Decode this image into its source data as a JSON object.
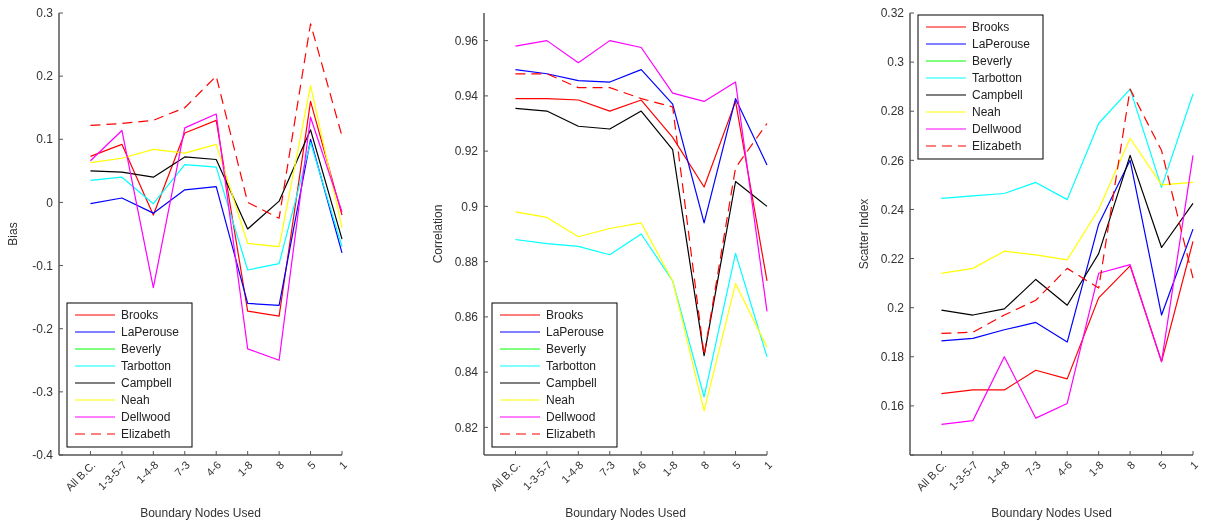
{
  "chart_data": [
    {
      "type": "line",
      "ylabel": "Bias",
      "xlabel": "Boundary Nodes Used",
      "categories": [
        "All B.C.",
        "1-3-5-7",
        "1-4-8",
        "7-3",
        "4-6",
        "1-8",
        "8",
        "5",
        "1"
      ],
      "ylim": [
        -0.4,
        0.3
      ],
      "yticks": [
        -0.4,
        -0.3,
        -0.2,
        -0.1,
        0,
        0.1,
        0.2,
        0.3
      ],
      "grid": false,
      "legend": "bottom left",
      "marker": "none",
      "series": [
        {
          "name": "Brooks",
          "color": "#ff0000",
          "line_style": "solid",
          "values": [
            0.073,
            0.092,
            -0.02,
            0.11,
            0.13,
            -0.172,
            -0.18,
            0.16,
            -0.02
          ]
        },
        {
          "name": "LaPerouse",
          "color": "#0000ff",
          "line_style": "solid",
          "values": [
            -0.002,
            0.007,
            -0.017,
            0.02,
            0.025,
            -0.16,
            -0.163,
            0.1,
            -0.08
          ]
        },
        {
          "name": "Beverly",
          "color": "#00ff00",
          "line_style": "solid",
          "values": [
            null,
            null,
            null,
            null,
            null,
            null,
            null,
            null,
            null
          ]
        },
        {
          "name": "Tarbotton",
          "color": "#00ffff",
          "line_style": "solid",
          "values": [
            0.035,
            0.04,
            -0.002,
            0.06,
            0.056,
            -0.107,
            -0.097,
            0.095,
            -0.07
          ]
        },
        {
          "name": "Campbell",
          "color": "#000000",
          "line_style": "solid",
          "values": [
            0.05,
            0.048,
            0.04,
            0.072,
            0.068,
            -0.042,
            0.002,
            0.115,
            -0.058
          ]
        },
        {
          "name": "Neah",
          "color": "#ffff00",
          "line_style": "solid",
          "values": [
            0.063,
            0.07,
            0.084,
            0.078,
            0.092,
            -0.065,
            -0.07,
            0.185,
            -0.04
          ]
        },
        {
          "name": "Dellwood",
          "color": "#ff00ff",
          "line_style": "solid",
          "values": [
            0.066,
            0.114,
            -0.135,
            0.118,
            0.14,
            -0.232,
            -0.25,
            0.135,
            -0.015
          ]
        },
        {
          "name": "Elizabeth",
          "color": "#ff0000",
          "line_style": "dashed",
          "values": [
            0.122,
            0.125,
            0.13,
            0.15,
            0.2,
            0,
            -0.025,
            0.283,
            0.105
          ]
        }
      ]
    },
    {
      "type": "line",
      "ylabel": "Correlation",
      "xlabel": "Boundary Nodes Used",
      "categories": [
        "All B.C.",
        "1-3-5-7",
        "1-4-8",
        "7-3",
        "4-6",
        "1-8",
        "8",
        "5",
        "1"
      ],
      "ylim": [
        0.81,
        0.97
      ],
      "yticks": [
        0.82,
        0.84,
        0.86,
        0.88,
        0.9,
        0.92,
        0.94,
        0.96
      ],
      "grid": false,
      "legend": "bottom left",
      "marker": "none",
      "series": [
        {
          "name": "Brooks",
          "color": "#ff0000",
          "line_style": "solid",
          "values": [
            0.939,
            0.939,
            0.9385,
            0.9345,
            0.9385,
            0.925,
            0.907,
            0.938,
            0.873
          ]
        },
        {
          "name": "LaPerouse",
          "color": "#0000ff",
          "line_style": "solid",
          "values": [
            0.9495,
            0.948,
            0.9455,
            0.945,
            0.9495,
            0.937,
            0.894,
            0.939,
            0.915
          ]
        },
        {
          "name": "Beverly",
          "color": "#00ff00",
          "line_style": "solid",
          "values": [
            null,
            null,
            null,
            null,
            null,
            null,
            null,
            null,
            null
          ]
        },
        {
          "name": "Tarbotton",
          "color": "#00ffff",
          "line_style": "solid",
          "values": [
            0.888,
            0.8865,
            0.8855,
            0.8825,
            0.89,
            0.873,
            0.831,
            0.883,
            0.8455
          ]
        },
        {
          "name": "Campbell",
          "color": "#000000",
          "line_style": "solid",
          "values": [
            0.9355,
            0.9345,
            0.929,
            0.928,
            0.9345,
            0.9205,
            0.846,
            0.909,
            0.9
          ]
        },
        {
          "name": "Neah",
          "color": "#ffff00",
          "line_style": "solid",
          "values": [
            0.898,
            0.896,
            0.889,
            0.892,
            0.894,
            0.873,
            0.826,
            0.872,
            0.849
          ]
        },
        {
          "name": "Dellwood",
          "color": "#ff00ff",
          "line_style": "solid",
          "values": [
            0.958,
            0.96,
            0.952,
            0.96,
            0.9575,
            0.941,
            0.938,
            0.945,
            0.862
          ]
        },
        {
          "name": "Elizabeth",
          "color": "#ff0000",
          "line_style": "dashed",
          "values": [
            0.948,
            0.948,
            0.943,
            0.943,
            0.939,
            0.936,
            0.846,
            0.914,
            0.93
          ]
        }
      ]
    },
    {
      "type": "line",
      "ylabel": "Scatter Index",
      "xlabel": "Boundary Nodes Used",
      "categories": [
        "All B.C.",
        "1-3-5-7",
        "1-4-8",
        "7-3",
        "4-6",
        "1-8",
        "8",
        "5",
        "1"
      ],
      "ylim": [
        0.14,
        0.32
      ],
      "yticks": [
        {
          "value": 0.14,
          "label": null
        },
        0.16,
        0.18,
        0.2,
        0.22,
        0.24,
        0.26,
        0.28,
        0.3,
        0.32
      ],
      "grid": false,
      "legend": "top left",
      "marker": "none",
      "series": [
        {
          "name": "Brooks",
          "color": "#ff0000",
          "line_style": "solid",
          "values": [
            0.165,
            0.1665,
            0.1665,
            0.1745,
            0.171,
            0.204,
            0.217,
            0.178,
            0.227
          ]
        },
        {
          "name": "LaPerouse",
          "color": "#0000ff",
          "line_style": "solid",
          "values": [
            0.1865,
            0.1875,
            0.191,
            0.194,
            0.186,
            0.234,
            0.26,
            0.197,
            0.232
          ]
        },
        {
          "name": "Beverly",
          "color": "#00ff00",
          "line_style": "solid",
          "values": [
            null,
            null,
            null,
            null,
            null,
            null,
            null,
            null,
            null
          ]
        },
        {
          "name": "Tarbotton",
          "color": "#00ffff",
          "line_style": "solid",
          "values": [
            0.2445,
            0.2455,
            0.2465,
            0.251,
            0.244,
            0.275,
            0.289,
            0.249,
            0.287
          ]
        },
        {
          "name": "Campbell",
          "color": "#000000",
          "line_style": "solid",
          "values": [
            0.199,
            0.197,
            0.1995,
            0.2115,
            0.201,
            0.222,
            0.262,
            0.2245,
            0.2425
          ]
        },
        {
          "name": "Neah",
          "color": "#ffff00",
          "line_style": "solid",
          "values": [
            0.214,
            0.216,
            0.223,
            0.2215,
            0.2195,
            0.24,
            0.269,
            0.25,
            0.251
          ]
        },
        {
          "name": "Dellwood",
          "color": "#ff00ff",
          "line_style": "solid",
          "values": [
            0.1525,
            0.154,
            0.18,
            0.155,
            0.161,
            0.214,
            0.2175,
            0.178,
            0.262
          ]
        },
        {
          "name": "Elizabeth",
          "color": "#ff0000",
          "line_style": "dashed",
          "values": [
            0.1895,
            0.19,
            0.197,
            0.203,
            0.216,
            0.208,
            0.289,
            0.264,
            0.212
          ]
        }
      ]
    }
  ]
}
